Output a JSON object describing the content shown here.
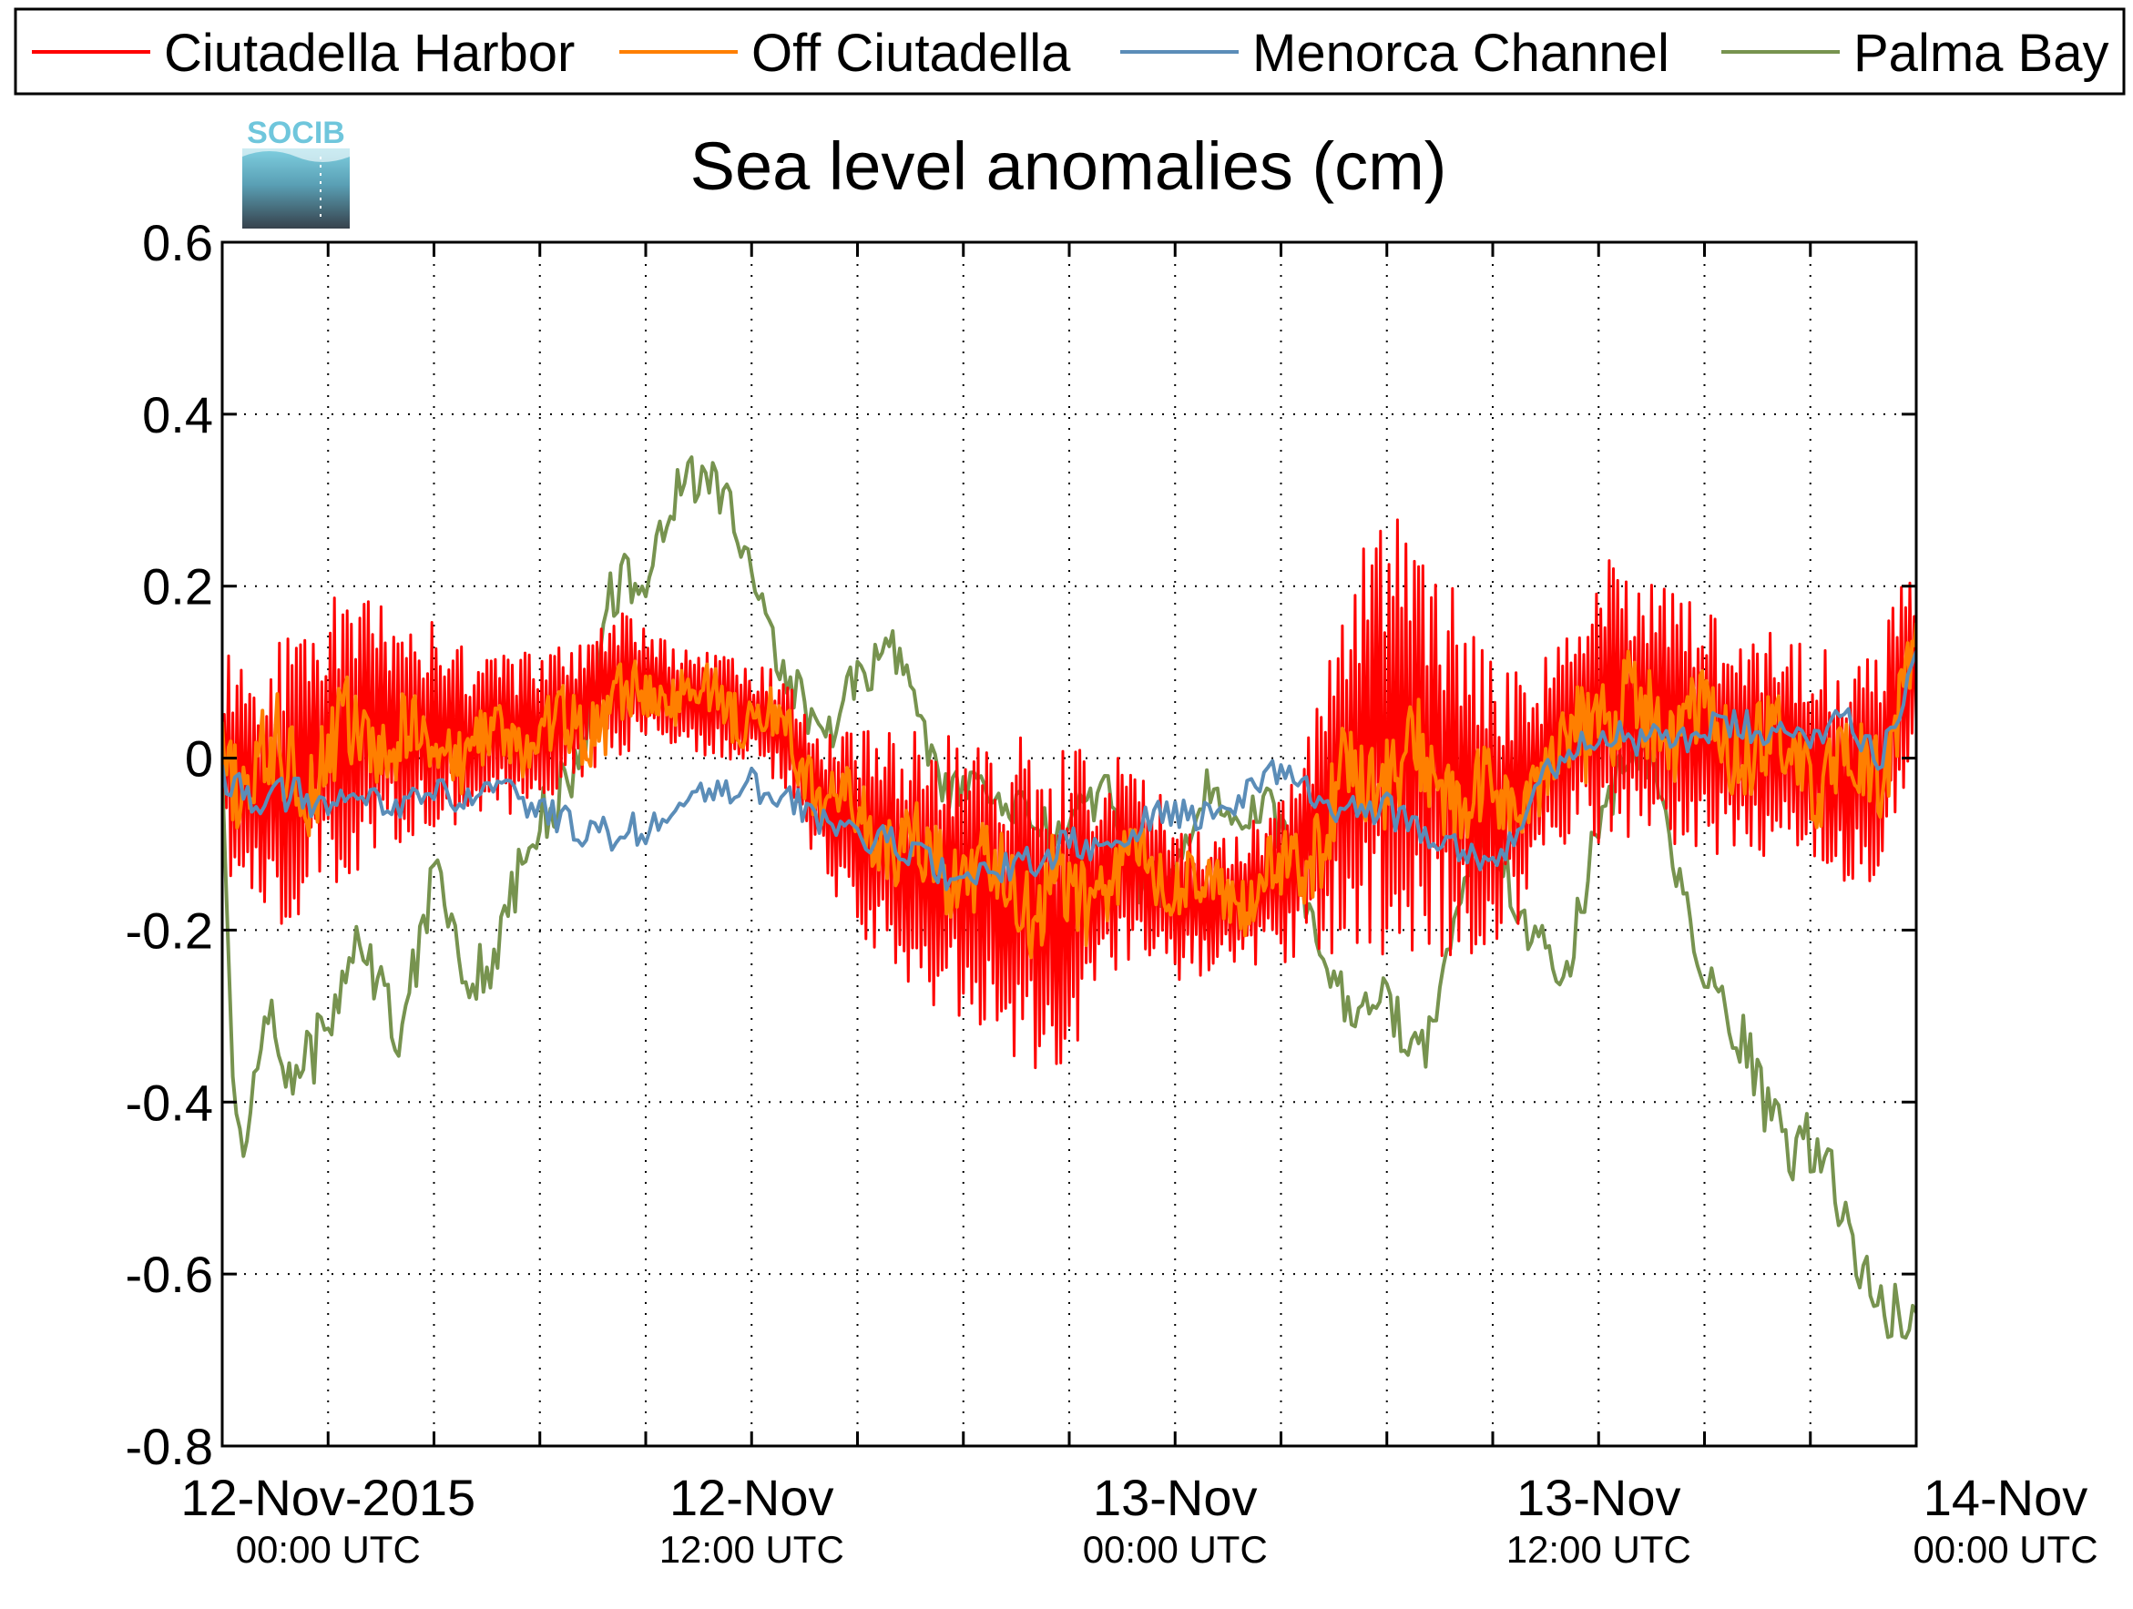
{
  "logo": {
    "text": "SOCIB"
  },
  "chart_data": {
    "type": "line",
    "title": "Sea level anomalies (cm)",
    "xlabel": "",
    "ylabel": "",
    "ylim": [
      -0.8,
      0.6
    ],
    "yticks": [
      0.6,
      0.4,
      0.2,
      0,
      -0.2,
      -0.4,
      -0.6,
      -0.8
    ],
    "ytick_labels": [
      "0.6",
      "0.4",
      "0.2",
      "0",
      "-0.2",
      "-0.4",
      "-0.6",
      "-0.8"
    ],
    "xlim_hours": [
      -3,
      45
    ],
    "xticks": [
      {
        "hours": 0,
        "date": "12-Nov-2015",
        "time": "00:00 UTC"
      },
      {
        "hours": 12,
        "date": "12-Nov",
        "time": "12:00 UTC"
      },
      {
        "hours": 24,
        "date": "13-Nov",
        "time": "00:00 UTC"
      },
      {
        "hours": 36,
        "date": "13-Nov",
        "time": "12:00 UTC"
      },
      {
        "hours": 48,
        "date": "14-Nov",
        "time": "00:00 UTC"
      }
    ],
    "grid": true,
    "legend_position": "top",
    "series": [
      {
        "name": "Ciutadella Harbor",
        "color": "#ff0000",
        "x": [
          -3,
          -2,
          -1,
          0,
          1,
          2,
          3,
          4,
          5,
          6,
          7,
          8,
          9,
          10,
          11,
          12,
          13,
          14,
          15,
          16,
          17,
          18,
          19,
          20,
          21,
          22,
          23,
          24,
          25,
          26,
          27,
          28,
          29,
          30,
          31,
          32,
          33,
          34,
          35,
          36,
          37,
          38,
          39,
          40,
          41,
          42,
          43,
          44,
          45
        ],
        "values": [
          0.0,
          -0.04,
          -0.02,
          0.02,
          0.03,
          0.04,
          0.04,
          0.02,
          0.03,
          0.04,
          0.05,
          0.09,
          0.08,
          0.07,
          0.06,
          0.05,
          0.03,
          -0.05,
          -0.08,
          -0.11,
          -0.13,
          -0.14,
          -0.16,
          -0.17,
          -0.18,
          -0.14,
          -0.12,
          -0.16,
          -0.17,
          -0.16,
          -0.14,
          -0.08,
          0.0,
          0.03,
          0.01,
          -0.03,
          -0.06,
          -0.04,
          0.02,
          0.08,
          0.06,
          0.05,
          0.03,
          0.02,
          0.01,
          0.0,
          -0.02,
          0.0,
          0.12
        ],
        "amplitude": [
          0.12,
          0.16,
          0.17,
          0.17,
          0.16,
          0.14,
          0.12,
          0.11,
          0.1,
          0.09,
          0.08,
          0.09,
          0.07,
          0.06,
          0.06,
          0.06,
          0.07,
          0.09,
          0.12,
          0.15,
          0.16,
          0.17,
          0.18,
          0.2,
          0.2,
          0.14,
          0.12,
          0.1,
          0.08,
          0.08,
          0.1,
          0.14,
          0.24,
          0.26,
          0.24,
          0.22,
          0.18,
          0.14,
          0.12,
          0.18,
          0.17,
          0.15,
          0.15,
          0.14,
          0.14,
          0.13,
          0.14,
          0.15,
          0.12
        ],
        "ylim_clip": true
      },
      {
        "name": "Off Ciutadella",
        "color": "#ff7f00",
        "x": [
          -3,
          -2,
          -1,
          0,
          1,
          2,
          3,
          4,
          5,
          6,
          7,
          8,
          9,
          10,
          11,
          12,
          13,
          14,
          15,
          16,
          17,
          18,
          19,
          20,
          21,
          22,
          23,
          24,
          25,
          26,
          27,
          28,
          29,
          30,
          31,
          32,
          33,
          34,
          35,
          36,
          37,
          38,
          39,
          40,
          41,
          42,
          43,
          44,
          45
        ],
        "values": [
          0.0,
          -0.02,
          -0.01,
          0.01,
          0.02,
          0.02,
          0.02,
          0.01,
          0.02,
          0.03,
          0.03,
          0.06,
          0.07,
          0.08,
          0.07,
          0.05,
          0.03,
          -0.04,
          -0.07,
          -0.1,
          -0.12,
          -0.13,
          -0.15,
          -0.16,
          -0.17,
          -0.14,
          -0.12,
          -0.14,
          -0.16,
          -0.16,
          -0.14,
          -0.09,
          -0.03,
          0.0,
          -0.02,
          -0.04,
          -0.06,
          -0.04,
          0.01,
          0.06,
          0.05,
          0.04,
          0.03,
          0.02,
          0.01,
          -0.01,
          -0.03,
          0.0,
          0.12
        ],
        "amplitude": [
          0.05,
          0.06,
          0.06,
          0.06,
          0.05,
          0.05,
          0.04,
          0.04,
          0.04,
          0.04,
          0.04,
          0.04,
          0.03,
          0.03,
          0.03,
          0.03,
          0.03,
          0.04,
          0.04,
          0.05,
          0.05,
          0.05,
          0.05,
          0.06,
          0.06,
          0.05,
          0.04,
          0.04,
          0.04,
          0.04,
          0.04,
          0.05,
          0.06,
          0.06,
          0.06,
          0.05,
          0.05,
          0.05,
          0.05,
          0.06,
          0.06,
          0.05,
          0.05,
          0.05,
          0.05,
          0.05,
          0.05,
          0.05,
          0.05
        ]
      },
      {
        "name": "Menorca Channel",
        "color": "#5b8db8",
        "x": [
          -3,
          -2,
          -1,
          0,
          1,
          2,
          3,
          4,
          5,
          6,
          7,
          8,
          9,
          10,
          11,
          12,
          13,
          14,
          15,
          16,
          17,
          18,
          19,
          20,
          21,
          22,
          23,
          24,
          25,
          26,
          27,
          28,
          29,
          30,
          31,
          32,
          33,
          34,
          35,
          36,
          37,
          38,
          39,
          40,
          41,
          42,
          43,
          44,
          45
        ],
        "values": [
          -0.02,
          -0.05,
          -0.04,
          -0.06,
          -0.05,
          -0.05,
          -0.04,
          -0.05,
          -0.04,
          -0.06,
          -0.08,
          -0.09,
          -0.08,
          -0.06,
          -0.04,
          -0.03,
          -0.05,
          -0.07,
          -0.09,
          -0.1,
          -0.12,
          -0.15,
          -0.13,
          -0.12,
          -0.1,
          -0.11,
          -0.08,
          -0.06,
          -0.07,
          -0.04,
          -0.01,
          -0.05,
          -0.06,
          -0.06,
          -0.08,
          -0.1,
          -0.12,
          -0.06,
          0.01,
          0.03,
          0.02,
          0.02,
          0.03,
          0.04,
          0.02,
          0.03,
          0.05,
          0.0,
          0.12
        ],
        "amplitude": [
          0.02,
          0.02,
          0.02,
          0.02,
          0.02,
          0.02,
          0.02,
          0.02,
          0.02,
          0.02,
          0.02,
          0.02,
          0.02,
          0.02,
          0.02,
          0.02,
          0.02,
          0.02,
          0.02,
          0.02,
          0.02,
          0.02,
          0.02,
          0.02,
          0.02,
          0.02,
          0.02,
          0.02,
          0.02,
          0.02,
          0.02,
          0.02,
          0.02,
          0.02,
          0.02,
          0.02,
          0.02,
          0.02,
          0.02,
          0.02,
          0.02,
          0.02,
          0.02,
          0.02,
          0.02,
          0.02,
          0.02,
          0.02,
          0.02
        ]
      },
      {
        "name": "Palma Bay",
        "color": "#77934f",
        "x": [
          -3,
          -2.7,
          -2.4,
          -1.8,
          -1,
          0,
          1,
          2,
          3,
          4,
          5,
          6,
          7,
          8,
          9,
          10,
          11,
          12,
          13,
          14,
          15,
          16,
          17,
          18,
          19,
          20,
          21,
          22,
          23,
          24,
          25,
          26,
          27,
          28,
          29,
          30,
          31,
          32,
          33,
          34,
          35,
          36,
          37,
          38,
          39,
          40,
          41,
          42,
          43,
          44,
          45
        ],
        "values": [
          0.0,
          -0.38,
          -0.48,
          -0.3,
          -0.36,
          -0.3,
          -0.22,
          -0.3,
          -0.14,
          -0.26,
          -0.18,
          -0.1,
          0.0,
          0.18,
          0.2,
          0.35,
          0.3,
          0.22,
          0.1,
          0.0,
          0.12,
          0.12,
          0.0,
          -0.02,
          -0.08,
          -0.05,
          -0.1,
          -0.05,
          -0.12,
          -0.16,
          -0.02,
          -0.05,
          -0.1,
          -0.19,
          -0.3,
          -0.28,
          -0.33,
          -0.2,
          -0.05,
          -0.2,
          -0.28,
          -0.05,
          0.0,
          -0.08,
          -0.25,
          -0.35,
          -0.42,
          -0.45,
          -0.55,
          -0.62,
          -0.68
        ],
        "amplitude": [
          0.0,
          0.02,
          0.02,
          0.04,
          0.04,
          0.04,
          0.04,
          0.04,
          0.04,
          0.04,
          0.04,
          0.04,
          0.04,
          0.04,
          0.03,
          0.03,
          0.03,
          0.03,
          0.03,
          0.03,
          0.03,
          0.03,
          0.03,
          0.03,
          0.03,
          0.03,
          0.03,
          0.03,
          0.03,
          0.03,
          0.03,
          0.03,
          0.03,
          0.03,
          0.03,
          0.03,
          0.03,
          0.03,
          0.03,
          0.03,
          0.03,
          0.03,
          0.03,
          0.03,
          0.03,
          0.04,
          0.04,
          0.04,
          0.04,
          0.04,
          0.04
        ]
      }
    ]
  }
}
